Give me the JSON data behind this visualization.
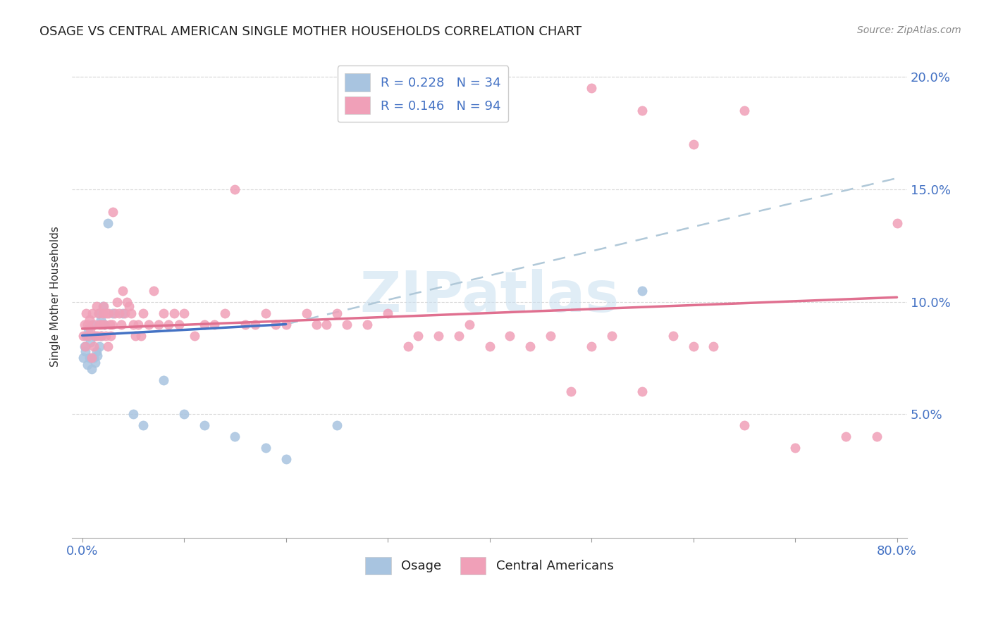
{
  "title": "OSAGE VS CENTRAL AMERICAN SINGLE MOTHER HOUSEHOLDS CORRELATION CHART",
  "source": "Source: ZipAtlas.com",
  "ylabel": "Single Mother Households",
  "osage_color": "#a8c4e0",
  "central_color": "#f0a0b8",
  "osage_line_color": "#4472c4",
  "central_line_color": "#e07090",
  "dashed_line_color": "#b0c8d8",
  "watermark": "ZIPatlas",
  "watermark_color": "#c8dff0",
  "title_color": "#222222",
  "axis_tick_color": "#4472c4",
  "legend_r1": "R = 0.228",
  "legend_n1": "N = 34",
  "legend_r2": "R = 0.146",
  "legend_n2": "N = 94",
  "legend_bottom": [
    "Osage",
    "Central Americans"
  ],
  "xlim": [
    0,
    80
  ],
  "ylim": [
    0,
    20
  ],
  "yticks": [
    0,
    5,
    10,
    15,
    20
  ],
  "xticks": [
    0,
    10,
    20,
    30,
    40,
    50,
    60,
    70,
    80
  ],
  "osage_x": [
    0.1,
    0.2,
    0.3,
    0.4,
    0.5,
    0.6,
    0.7,
    0.8,
    0.9,
    1.0,
    1.1,
    1.2,
    1.3,
    1.4,
    1.5,
    1.6,
    1.7,
    1.8,
    1.9,
    2.0,
    2.2,
    2.5,
    3.0,
    4.0,
    5.0,
    6.0,
    8.0,
    10.0,
    12.0,
    15.0,
    18.0,
    20.0,
    25.0,
    55.0
  ],
  "osage_y": [
    7.5,
    8.0,
    7.8,
    8.5,
    7.2,
    8.8,
    7.5,
    8.2,
    7.0,
    9.0,
    7.5,
    8.5,
    7.3,
    7.8,
    7.6,
    9.5,
    8.0,
    9.2,
    8.5,
    9.8,
    9.0,
    13.5,
    9.5,
    9.5,
    5.0,
    4.5,
    6.5,
    5.0,
    4.5,
    4.0,
    3.5,
    3.0,
    4.5,
    10.5
  ],
  "central_x": [
    0.1,
    0.2,
    0.3,
    0.4,
    0.5,
    0.6,
    0.7,
    0.8,
    0.9,
    1.0,
    1.1,
    1.2,
    1.3,
    1.4,
    1.5,
    1.6,
    1.7,
    1.8,
    1.9,
    2.0,
    2.1,
    2.2,
    2.3,
    2.4,
    2.5,
    2.6,
    2.7,
    2.8,
    2.9,
    3.0,
    3.2,
    3.4,
    3.6,
    3.8,
    4.0,
    4.2,
    4.4,
    4.6,
    4.8,
    5.0,
    5.2,
    5.5,
    5.8,
    6.0,
    6.5,
    7.0,
    7.5,
    8.0,
    8.5,
    9.0,
    9.5,
    10.0,
    11.0,
    12.0,
    13.0,
    14.0,
    15.0,
    16.0,
    17.0,
    18.0,
    19.0,
    20.0,
    22.0,
    23.0,
    24.0,
    25.0,
    26.0,
    28.0,
    30.0,
    32.0,
    33.0,
    35.0,
    37.0,
    38.0,
    40.0,
    42.0,
    44.0,
    46.0,
    48.0,
    50.0,
    52.0,
    55.0,
    58.0,
    60.0,
    62.0,
    65.0,
    70.0,
    75.0,
    78.0,
    80.0,
    50.0,
    55.0,
    60.0,
    65.0
  ],
  "central_y": [
    8.5,
    9.0,
    8.0,
    9.5,
    9.0,
    8.5,
    9.2,
    8.8,
    7.5,
    9.5,
    8.0,
    9.0,
    8.5,
    9.8,
    8.5,
    9.5,
    9.0,
    8.5,
    9.0,
    9.5,
    9.8,
    9.0,
    8.5,
    9.5,
    8.0,
    9.5,
    9.0,
    8.5,
    9.0,
    14.0,
    9.5,
    10.0,
    9.5,
    9.0,
    10.5,
    9.5,
    10.0,
    9.8,
    9.5,
    9.0,
    8.5,
    9.0,
    8.5,
    9.5,
    9.0,
    10.5,
    9.0,
    9.5,
    9.0,
    9.5,
    9.0,
    9.5,
    8.5,
    9.0,
    9.0,
    9.5,
    15.0,
    9.0,
    9.0,
    9.5,
    9.0,
    9.0,
    9.5,
    9.0,
    9.0,
    9.5,
    9.0,
    9.0,
    9.5,
    8.0,
    8.5,
    8.5,
    8.5,
    9.0,
    8.0,
    8.5,
    8.0,
    8.5,
    6.0,
    8.0,
    8.5,
    6.0,
    8.5,
    8.0,
    8.0,
    4.5,
    3.5,
    4.0,
    4.0,
    13.5,
    19.5,
    18.5,
    17.0,
    18.5
  ],
  "osage_line_x0": 0.0,
  "osage_line_y0": 8.5,
  "osage_line_x1": 20.0,
  "osage_line_y1": 9.0,
  "osage_dash_x0": 20.0,
  "osage_dash_y0": 9.0,
  "osage_dash_x1": 80.0,
  "osage_dash_y1": 15.5,
  "central_line_x0": 0.0,
  "central_line_y0": 8.8,
  "central_line_x1": 80.0,
  "central_line_y1": 10.2
}
